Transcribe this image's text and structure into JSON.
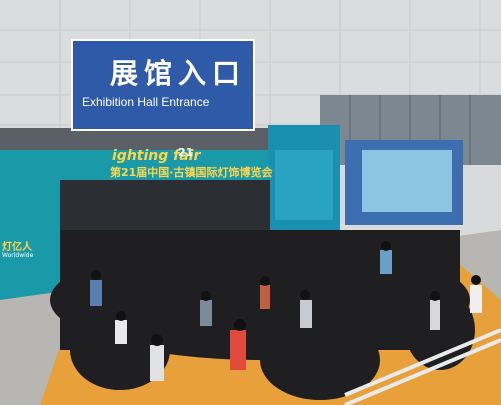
{
  "hall_sign": {
    "chinese": "展馆入口",
    "english": "Exhibition Hall Entrance"
  },
  "fair_banner": {
    "logo_text": "ighting fair",
    "edition_num": "21",
    "chinese_title": "第21届中国·古镇国际灯饰博览会",
    "left_fragment": "灯亿人",
    "left_sub": "Worldwide"
  },
  "colors": {
    "sign_blue": "#2f5aa8",
    "banner_teal": "#1a9aa8",
    "carpet_orange": "#e8a03a"
  }
}
